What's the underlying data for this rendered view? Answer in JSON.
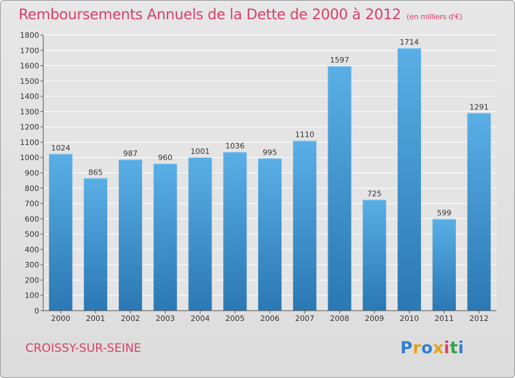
{
  "header": {
    "title": "Remboursements Annuels de la Dette de 2000 à 2012",
    "subtitle": "(en milliers d'€)"
  },
  "footer": {
    "city": "CROISSY-SUR-SEINE",
    "logo": "Proxiti"
  },
  "colors": {
    "bar_top": "#5aaee6",
    "bar_bottom": "#2a78b4",
    "title": "#d6406a",
    "grid": "#ffffff",
    "logo_letters": [
      "#2f7fd0",
      "#e0a21a",
      "#2f7fd0",
      "#e0a21a",
      "#d6406a",
      "#2aa64a",
      "#2f7fd0"
    ]
  },
  "chart_data": {
    "type": "bar",
    "title": "Remboursements Annuels de la Dette de 2000 à 2012",
    "xlabel": "",
    "ylabel": "",
    "categories": [
      "2000",
      "2001",
      "2002",
      "2003",
      "2004",
      "2005",
      "2006",
      "2007",
      "2008",
      "2009",
      "2010",
      "2011",
      "2012"
    ],
    "values": [
      1024,
      865,
      987,
      960,
      1001,
      1036,
      995,
      1110,
      1597,
      725,
      1714,
      599,
      1291
    ],
    "ylim": [
      0,
      1800
    ],
    "yticks": [
      0,
      100,
      200,
      300,
      400,
      500,
      600,
      700,
      800,
      900,
      1000,
      1100,
      1200,
      1300,
      1400,
      1500,
      1600,
      1700,
      1800
    ],
    "grid": true,
    "data_labels": true
  }
}
